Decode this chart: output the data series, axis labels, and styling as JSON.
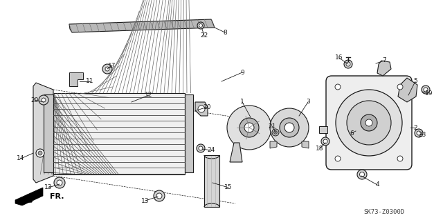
{
  "diagram_code": "SK73-Z0300D",
  "bg_color": "#ffffff",
  "line_color": "#1a1a1a",
  "fig_width": 6.4,
  "fig_height": 3.19,
  "dpi": 100
}
